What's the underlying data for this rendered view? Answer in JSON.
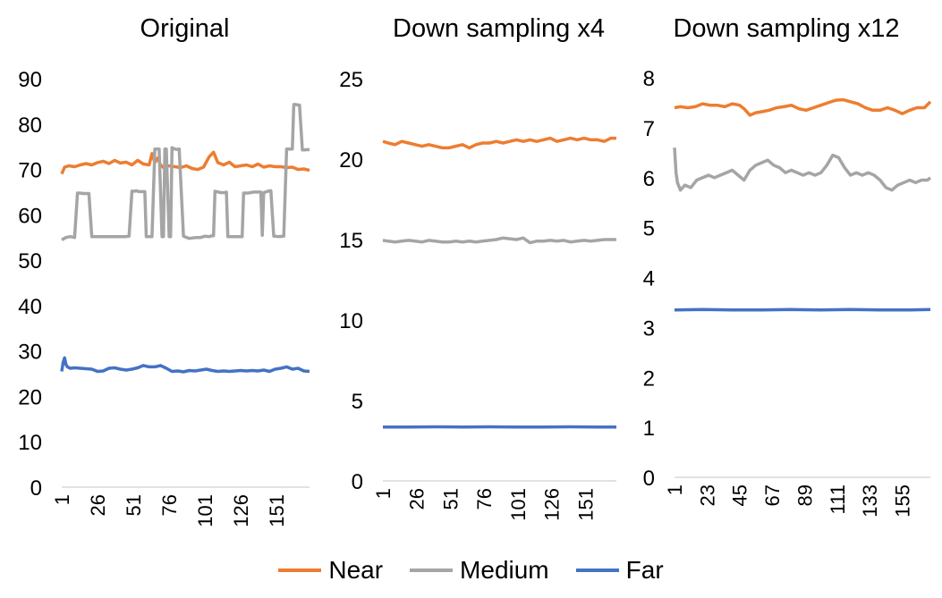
{
  "chart_data": [
    {
      "type": "line",
      "title": "Original",
      "ylim": [
        0,
        90
      ],
      "yticks": [
        0,
        10,
        20,
        30,
        40,
        50,
        60,
        70,
        80,
        90
      ],
      "xticks": [
        "1",
        "26",
        "51",
        "76",
        "101",
        "126",
        "151"
      ],
      "x_range": [
        1,
        174
      ],
      "grid": false,
      "series": [
        {
          "name": "Near",
          "color": "#ED7D31",
          "x": [
            1,
            3,
            6,
            10,
            14,
            18,
            22,
            26,
            30,
            34,
            38,
            42,
            46,
            50,
            54,
            58,
            62,
            64,
            66,
            68,
            70,
            72,
            76,
            80,
            84,
            88,
            92,
            96,
            100,
            104,
            107,
            110,
            114,
            118,
            122,
            126,
            130,
            134,
            138,
            142,
            146,
            150,
            154,
            158,
            162,
            166,
            170,
            174
          ],
          "y": [
            69,
            70.5,
            70.8,
            70.6,
            71,
            71.3,
            71,
            71.5,
            71.8,
            71.3,
            72,
            71.4,
            71.6,
            71,
            72,
            71.2,
            71,
            73.5,
            71.5,
            72.5,
            71,
            70.4,
            70.8,
            70.6,
            70.4,
            70.8,
            70.2,
            70,
            70.5,
            72.8,
            73.8,
            71.5,
            71,
            71.6,
            70.6,
            70.8,
            71,
            70.6,
            71.2,
            70.5,
            70.8,
            70.6,
            70.6,
            70.4,
            70.5,
            70,
            70.1,
            69.8
          ]
        },
        {
          "name": "Medium",
          "color": "#A5A5A5",
          "x": [
            1,
            4,
            7,
            10,
            12,
            14,
            16,
            20,
            22,
            24,
            26,
            30,
            35,
            40,
            45,
            48,
            50,
            52,
            53,
            55,
            59,
            60,
            62,
            63,
            64,
            66,
            68,
            69,
            71,
            72,
            73,
            74,
            76,
            77,
            78,
            80,
            81,
            83,
            86,
            90,
            95,
            98,
            101,
            104,
            106,
            107,
            108,
            112,
            115,
            116,
            117,
            120,
            125,
            127,
            128,
            130,
            131,
            135,
            138,
            140,
            141,
            142,
            143,
            145,
            147,
            149,
            150,
            152,
            156,
            158,
            160,
            162,
            163,
            164,
            166,
            167,
            169,
            170,
            174
          ],
          "y": [
            54.5,
            55,
            55.2,
            55,
            64.8,
            64.8,
            64.7,
            64.7,
            55.2,
            55.2,
            55.2,
            55.2,
            55.2,
            55.2,
            55.2,
            55.3,
            65.2,
            65.2,
            65.3,
            65.1,
            65.1,
            55.2,
            55.2,
            55.2,
            55.2,
            74.5,
            74.5,
            74.5,
            55.2,
            55.2,
            74.5,
            74.5,
            55.2,
            55.2,
            74.8,
            74.5,
            74.4,
            74.5,
            55.3,
            54.8,
            55,
            55,
            55.3,
            55.2,
            55.4,
            55.4,
            65.2,
            64.9,
            64.9,
            65,
            55.2,
            55.2,
            55.2,
            55.2,
            64.8,
            64.8,
            64.8,
            65,
            65,
            65,
            55.5,
            64.9,
            65,
            65.2,
            65.3,
            55.3,
            55.3,
            55.2,
            55.3,
            74.5,
            74.5,
            74.5,
            84.3,
            84.3,
            84.2,
            84.2,
            74.3,
            74.3,
            74.4
          ]
        },
        {
          "name": "Far",
          "color": "#4472C4",
          "x": [
            1,
            2,
            3,
            4,
            5,
            7,
            10,
            14,
            18,
            22,
            26,
            30,
            34,
            38,
            42,
            46,
            50,
            54,
            58,
            62,
            66,
            70,
            74,
            78,
            82,
            86,
            90,
            94,
            98,
            102,
            106,
            110,
            114,
            118,
            122,
            126,
            130,
            134,
            138,
            142,
            146,
            150,
            154,
            158,
            162,
            166,
            170,
            174
          ],
          "y": [
            25.5,
            27.5,
            28.5,
            27,
            26.5,
            26.2,
            26.3,
            26.2,
            26.1,
            26,
            25.5,
            25.6,
            26.2,
            26.3,
            26,
            25.8,
            26,
            26.3,
            26.8,
            26.5,
            26.5,
            26.8,
            26.2,
            25.5,
            25.6,
            25.4,
            25.7,
            25.6,
            25.8,
            26,
            25.7,
            25.5,
            25.6,
            25.5,
            25.6,
            25.7,
            25.6,
            25.7,
            25.6,
            25.8,
            25.5,
            26,
            26.2,
            26.5,
            26,
            26.2,
            25.6,
            25.5
          ]
        }
      ]
    },
    {
      "type": "line",
      "title": "Down sampling x4",
      "ylim": [
        0,
        25
      ],
      "yticks": [
        0,
        5,
        10,
        15,
        20,
        25
      ],
      "xticks": [
        "1",
        "26",
        "51",
        "76",
        "101",
        "126",
        "151"
      ],
      "x_range": [
        1,
        174
      ],
      "grid": false,
      "series": [
        {
          "name": "Near",
          "color": "#ED7D31",
          "x": [
            1,
            5,
            10,
            15,
            20,
            25,
            30,
            35,
            40,
            45,
            50,
            55,
            60,
            65,
            70,
            75,
            80,
            85,
            90,
            95,
            100,
            105,
            110,
            115,
            120,
            125,
            130,
            135,
            140,
            145,
            150,
            155,
            160,
            165,
            170,
            174
          ],
          "y": [
            21.1,
            21,
            20.9,
            21.1,
            21,
            20.9,
            20.8,
            20.9,
            20.8,
            20.7,
            20.7,
            20.8,
            20.9,
            20.7,
            20.9,
            21,
            21,
            21.1,
            21,
            21.1,
            21.2,
            21.1,
            21.2,
            21.1,
            21.2,
            21.3,
            21.1,
            21.2,
            21.3,
            21.2,
            21.3,
            21.2,
            21.2,
            21.1,
            21.3,
            21.3
          ]
        },
        {
          "name": "Medium",
          "color": "#A5A5A5",
          "x": [
            1,
            5,
            10,
            15,
            20,
            25,
            30,
            35,
            40,
            45,
            50,
            55,
            60,
            65,
            70,
            75,
            80,
            85,
            90,
            95,
            100,
            105,
            110,
            115,
            120,
            125,
            130,
            135,
            140,
            145,
            150,
            155,
            160,
            165,
            170,
            174
          ],
          "y": [
            14.95,
            14.9,
            14.85,
            14.9,
            14.95,
            14.9,
            14.85,
            14.95,
            14.9,
            14.85,
            14.85,
            14.9,
            14.85,
            14.9,
            14.85,
            14.9,
            14.95,
            15,
            15.1,
            15.05,
            15,
            15.1,
            14.8,
            14.9,
            14.9,
            14.95,
            14.9,
            14.95,
            14.85,
            14.9,
            14.95,
            14.9,
            14.95,
            15,
            15,
            15
          ]
        },
        {
          "name": "Far",
          "color": "#4472C4",
          "x": [
            1,
            20,
            40,
            60,
            80,
            100,
            120,
            140,
            160,
            174
          ],
          "y": [
            3.35,
            3.35,
            3.36,
            3.35,
            3.36,
            3.35,
            3.35,
            3.36,
            3.35,
            3.35
          ]
        }
      ]
    },
    {
      "type": "line",
      "title": "Down sampling x12",
      "ylim": [
        0,
        8
      ],
      "yticks": [
        0,
        1,
        2,
        3,
        4,
        5,
        6,
        7,
        8
      ],
      "xticks": [
        "1",
        "23",
        "45",
        "67",
        "89",
        "111",
        "133",
        "155"
      ],
      "x_range": [
        1,
        174
      ],
      "grid": false,
      "series": [
        {
          "name": "Near",
          "color": "#ED7D31",
          "x": [
            1,
            5,
            10,
            15,
            20,
            25,
            30,
            35,
            40,
            45,
            48,
            52,
            56,
            60,
            65,
            70,
            75,
            80,
            85,
            90,
            95,
            100,
            105,
            110,
            115,
            120,
            125,
            130,
            135,
            140,
            145,
            150,
            155,
            160,
            165,
            170,
            174
          ],
          "y": [
            7.4,
            7.42,
            7.4,
            7.42,
            7.48,
            7.45,
            7.45,
            7.42,
            7.48,
            7.45,
            7.38,
            7.25,
            7.3,
            7.32,
            7.35,
            7.4,
            7.42,
            7.45,
            7.38,
            7.35,
            7.4,
            7.45,
            7.5,
            7.55,
            7.56,
            7.52,
            7.48,
            7.4,
            7.35,
            7.35,
            7.4,
            7.35,
            7.28,
            7.35,
            7.4,
            7.4,
            7.52
          ]
        },
        {
          "name": "Medium",
          "color": "#A5A5A5",
          "x": [
            1,
            2,
            3,
            5,
            8,
            12,
            16,
            20,
            24,
            28,
            32,
            36,
            40,
            44,
            48,
            52,
            56,
            60,
            64,
            68,
            72,
            76,
            80,
            84,
            88,
            92,
            96,
            100,
            104,
            108,
            112,
            116,
            120,
            124,
            128,
            132,
            136,
            140,
            144,
            148,
            152,
            156,
            160,
            164,
            168,
            172,
            174
          ],
          "y": [
            6.6,
            6.1,
            5.9,
            5.75,
            5.85,
            5.8,
            5.95,
            6,
            6.05,
            6,
            6.05,
            6.1,
            6.15,
            6.05,
            5.95,
            6.15,
            6.25,
            6.3,
            6.35,
            6.25,
            6.2,
            6.1,
            6.15,
            6.1,
            6.05,
            6.1,
            6.05,
            6.1,
            6.25,
            6.45,
            6.4,
            6.2,
            6.05,
            6.1,
            6.05,
            6.1,
            6.05,
            5.95,
            5.8,
            5.75,
            5.85,
            5.9,
            5.95,
            5.9,
            5.95,
            5.95,
            6
          ]
        },
        {
          "name": "Far",
          "color": "#4472C4",
          "x": [
            1,
            20,
            40,
            60,
            80,
            100,
            120,
            140,
            160,
            174
          ],
          "y": [
            3.35,
            3.36,
            3.35,
            3.35,
            3.36,
            3.35,
            3.36,
            3.35,
            3.35,
            3.36
          ]
        }
      ]
    }
  ],
  "legend": [
    {
      "label": "Near",
      "color": "#ED7D31"
    },
    {
      "label": "Medium",
      "color": "#A5A5A5"
    },
    {
      "label": "Far",
      "color": "#4472C4"
    }
  ],
  "legend_position": "bottom"
}
